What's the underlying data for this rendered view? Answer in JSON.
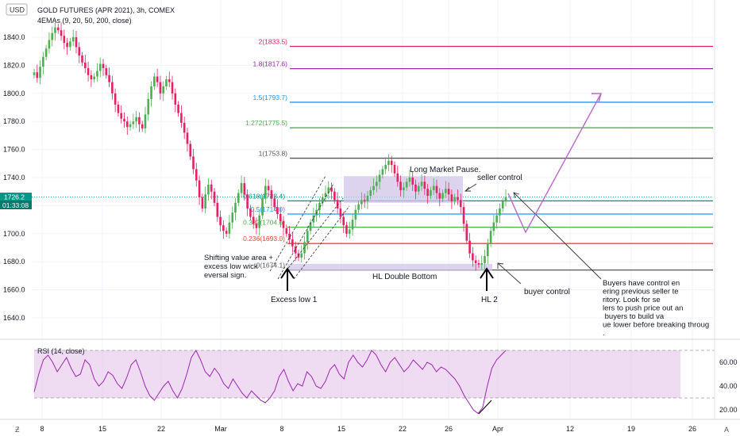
{
  "header": {
    "currency_badge": "USD",
    "title": "GOLD FUTURES (APR 2021), 3h, COMEX",
    "indicator_label": "4EMAs (9, 20, 50, 200, close)"
  },
  "price_badge": {
    "price": "1726.2",
    "countdown": "01:33:08"
  },
  "colors": {
    "up": "#26a69a",
    "down": "#ef5350",
    "upper_candle": "#4caf50",
    "lower_candle": "#e91e63",
    "fib_2": "#e91e63",
    "fib_1_8": "#9c27b0",
    "fib_1_5": "#2196f3",
    "fib_1_272": "#4caf50",
    "fib_1": "#555555",
    "fib_0_618": "#009688",
    "fib_0_5": "#2196f3",
    "fib_0_382": "#4caf50",
    "fib_0_236": "#f44336",
    "fib_0": "#555555",
    "rsi_line": "#9c27b0",
    "rsi_band": "#e1bee7",
    "projection": "#ba68c8",
    "box": "#d1c4e9"
  },
  "chart_data": [
    {
      "type": "line",
      "title": "GOLD FUTURES (APR 2021), 3h, COMEX",
      "xlabel": "",
      "ylabel": "",
      "x_ticks": [
        "8",
        "15",
        "22",
        "Mar",
        "8",
        "15",
        "22",
        "26",
        "Apr",
        "12",
        "19",
        "26"
      ],
      "y_ticks": [
        1840.0,
        1820.0,
        1800.0,
        1780.0,
        1760.0,
        1740.0,
        1720.0,
        1700.0,
        1680.0,
        1660.0,
        1640.0
      ],
      "ylim": [
        1625,
        1858
      ],
      "series": [
        {
          "values": [
            1815,
            1811,
            1819,
            1826,
            1832,
            1838,
            1843,
            1847,
            1845,
            1841,
            1836,
            1833,
            1837,
            1840,
            1833,
            1827,
            1822,
            1818,
            1813,
            1810,
            1812,
            1816,
            1821,
            1818,
            1813,
            1808,
            1800,
            1792,
            1786,
            1782,
            1780,
            1776,
            1778,
            1780,
            1783,
            1778,
            1775,
            1785,
            1796,
            1805,
            1812,
            1808,
            1800,
            1805,
            1810,
            1808,
            1800,
            1792,
            1786,
            1779,
            1772,
            1764,
            1755,
            1746,
            1738,
            1726,
            1718,
            1728,
            1735,
            1730,
            1722,
            1712,
            1706,
            1702,
            1700,
            1708,
            1715,
            1722,
            1729,
            1736,
            1728,
            1718,
            1712,
            1707,
            1704,
            1713,
            1725,
            1734,
            1731,
            1725,
            1719,
            1714,
            1709,
            1704,
            1700,
            1696,
            1691,
            1686,
            1683,
            1686,
            1694,
            1702,
            1708,
            1713,
            1717,
            1722,
            1726,
            1729,
            1733,
            1730,
            1724,
            1718,
            1712,
            1706,
            1700,
            1703,
            1710,
            1717,
            1721,
            1724,
            1723,
            1727,
            1731,
            1734,
            1737,
            1742,
            1746,
            1749,
            1752,
            1749,
            1743,
            1737,
            1731,
            1733,
            1737,
            1740,
            1735,
            1730,
            1734,
            1737,
            1732,
            1727,
            1731,
            1734,
            1729,
            1725,
            1729,
            1732,
            1728,
            1723,
            1726,
            1724,
            1719,
            1707,
            1695,
            1686,
            1681,
            1679,
            1678,
            1679,
            1684,
            1693,
            1702,
            1708,
            1713,
            1718,
            1723,
            1726
          ],
          "smoothing_label": "EMA"
        }
      ],
      "fibonacci_levels": [
        {
          "ratio": "2",
          "price": 1833.5,
          "label": "2(1833.5)"
        },
        {
          "ratio": "1.8",
          "price": 1817.6,
          "label": "1.8(1817.6)"
        },
        {
          "ratio": "1.5",
          "price": 1793.7,
          "label": "1.5(1793.7)"
        },
        {
          "ratio": "1.272",
          "price": 1775.5,
          "label": "1.272(1775.5)"
        },
        {
          "ratio": "1",
          "price": 1753.8,
          "label": "1(1753.8)"
        },
        {
          "ratio": "0.618",
          "price": 1723.4,
          "label": "0.618(1723.4)"
        },
        {
          "ratio": "0.5",
          "price": 1714.0,
          "label": "0.5(1714.0)"
        },
        {
          "ratio": "0.382",
          "price": 1704.6,
          "label": "0.382(1704.6)"
        },
        {
          "ratio": "0.236",
          "price": 1693.0,
          "label": "0.236(1693.0)"
        },
        {
          "ratio": "0",
          "price": 1674.1,
          "label": "0(1674.1)"
        }
      ],
      "annotations": [
        "Long Market Pause.",
        "seller control",
        "Shifting value area + excess low wick reversal sign.",
        "Excess low 1",
        "HL Double Bottom",
        "HL 2",
        "buyer control",
        "Buyers have control entering previous seller territory. Look for sellers to push price out and buyers to build value lower before breaking through."
      ]
    },
    {
      "type": "line",
      "title": "RSI (14, close)",
      "y_ticks": [
        60.0,
        40.0,
        20.0
      ],
      "ylim": [
        15,
        75
      ],
      "band": [
        30,
        70
      ],
      "series": [
        {
          "values": [
            35,
            50,
            62,
            66,
            60,
            52,
            58,
            64,
            55,
            48,
            50,
            62,
            58,
            46,
            40,
            44,
            52,
            49,
            42,
            38,
            47,
            58,
            62,
            52,
            40,
            32,
            28,
            34,
            40,
            44,
            36,
            30,
            38,
            50,
            64,
            70,
            62,
            52,
            48,
            55,
            50,
            42,
            38,
            46,
            40,
            34,
            30,
            36,
            32,
            28,
            26,
            30,
            36,
            48,
            54,
            44,
            36,
            42,
            40,
            52,
            48,
            40,
            38,
            44,
            54,
            58,
            50,
            46,
            60,
            66,
            60,
            56,
            62,
            70,
            66,
            58,
            52,
            60,
            64,
            58,
            52,
            56,
            62,
            58,
            54,
            60,
            58,
            52,
            56,
            54,
            50,
            46,
            40,
            32,
            26,
            20,
            17,
            22,
            40,
            55,
            62,
            66,
            70
          ]
        }
      ]
    }
  ]
}
